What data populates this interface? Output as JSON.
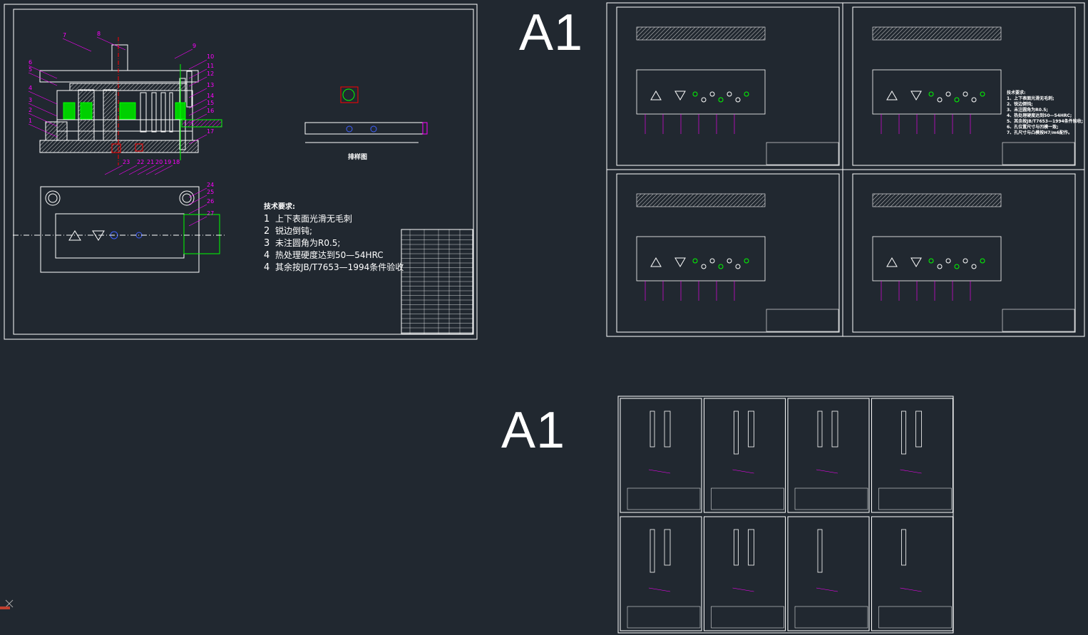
{
  "sheet_labels": {
    "top": "A1",
    "bottom": "A1"
  },
  "assembly": {
    "part_numbers": [
      "1",
      "2",
      "3",
      "4",
      "5",
      "6",
      "7",
      "8",
      "9",
      "10",
      "11",
      "12",
      "13",
      "14",
      "15",
      "16",
      "17",
      "18",
      "19",
      "20",
      "21",
      "22",
      "23",
      "24",
      "25",
      "26",
      "27"
    ],
    "layout_label": "排样图",
    "requirements_title": "技术要求:",
    "requirements": [
      {
        "n": "1",
        "text": "上下表面光滑无毛刺"
      },
      {
        "n": "2",
        "text": "锐边倒钝;"
      },
      {
        "n": "3",
        "text": "未注圆角为R0.5;"
      },
      {
        "n": "4",
        "text": "热处理硬度达到50—54HRC"
      },
      {
        "n": "4",
        "text": "其余按JB/T7653—1994条件验收"
      }
    ]
  },
  "plate_sheet_requirements": [
    "技术要求:",
    "1、上下表面光滑无毛刺;",
    "2、锐边倒钝;",
    "3、未注圆角为R0.5;",
    "4、热处理硬度达到50—54HRC;",
    "5、其余按JB/T7653—1994条件验收;",
    "6、孔位置尺寸与凹模一致;",
    "7、孔尺寸与凸模按H7/m6配作。"
  ],
  "colors": {
    "background": "#212830",
    "line": "#ffffff",
    "dimension": "#ff00ff",
    "spring": "#00ff00",
    "center": "#ff0000",
    "hole": "#0000ff"
  },
  "ucs_icon": "ucs-axis-icon"
}
